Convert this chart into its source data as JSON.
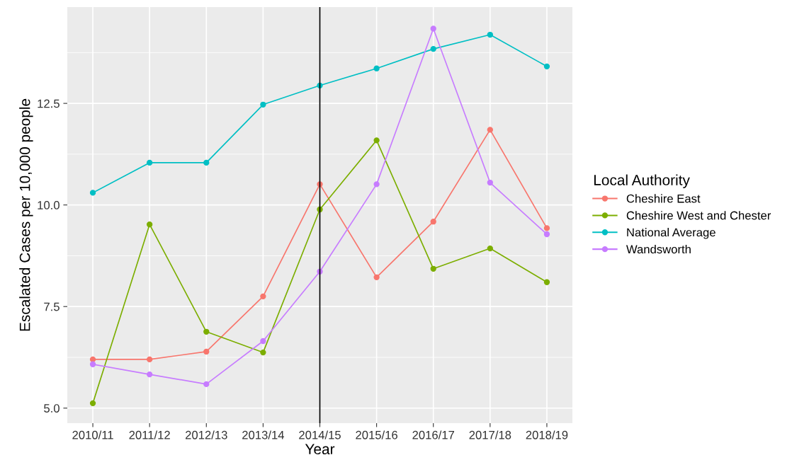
{
  "chart_data": {
    "type": "line",
    "xlabel": "Year",
    "ylabel": "Escalated Cases per 10,000 people",
    "legend_title": "Local Authority",
    "legend": "right",
    "grid": true,
    "marker": "circle",
    "line_style": "solid",
    "categories": [
      "2010/11",
      "2011/12",
      "2012/13",
      "2013/14",
      "2014/15",
      "2015/16",
      "2016/17",
      "2017/18",
      "2018/19"
    ],
    "ylim": [
      4.63,
      14.87
    ],
    "yticks": [
      {
        "value": 5,
        "label": "5.0"
      },
      {
        "value": 7.5,
        "label": "7.5"
      },
      {
        "value": 10,
        "label": "10.0"
      },
      {
        "value": 12.5,
        "label": "12.5"
      }
    ],
    "ref_lines": [
      {
        "axis": "x",
        "value": "2014/15",
        "color": "#000000"
      }
    ],
    "series": [
      {
        "name": "Cheshire East",
        "color": "#f8766d",
        "values": [
          6.2,
          6.2,
          6.39,
          7.75,
          10.51,
          8.22,
          9.59,
          11.85,
          9.43
        ]
      },
      {
        "name": "Cheshire West and Chester",
        "color": "#7cae00",
        "values": [
          5.12,
          9.52,
          6.88,
          6.37,
          9.89,
          11.59,
          8.43,
          8.93,
          8.1
        ]
      },
      {
        "name": "National Average",
        "color": "#00bfc4",
        "values": [
          10.3,
          11.04,
          11.04,
          12.47,
          12.94,
          13.36,
          13.84,
          14.19,
          13.41
        ]
      },
      {
        "name": "Wandsworth",
        "color": "#c77cff",
        "values": [
          6.08,
          5.83,
          5.59,
          6.65,
          8.36,
          10.51,
          14.34,
          10.55,
          9.28
        ]
      }
    ]
  }
}
